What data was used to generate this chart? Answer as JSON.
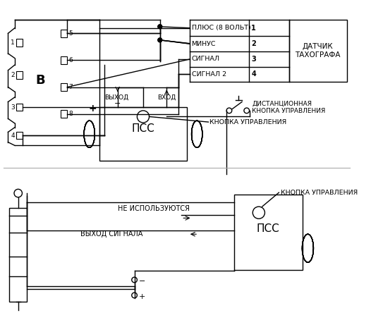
{
  "bg_color": "#ffffff",
  "fig_width": 5.26,
  "fig_height": 4.71,
  "dpi": 100,
  "labels": {
    "plus_8v": "ПЛЮС (8 ВОЛЬТ)",
    "minus": "МИНУС",
    "signal": "СИГНАЛ",
    "signal2": "СИГНАЛ 2",
    "sensor_box": "ДАТЧИК\nТАХОГРАФА",
    "vyhod": "ВЫХОД",
    "vhod": "ВХОД",
    "dist_btn": "ДИСТАНЦИОННАЯ\nКНОПКА УПРАВЛЕНИЯ",
    "knopka": "КНОПКА УПРАВЛЕНИЯ",
    "pss": "ПСС",
    "plus": "+",
    "minus_sign": "−",
    "b_label": "В",
    "ne_ispolz": "НЕ ИСПОЛЬЗУЮТСЯ",
    "vyhod_signala": "ВЫХОД СИГНАЛА",
    "knopka2": "КНОПКА УПРАВЛЕНИЯ",
    "pss2": "ПСС",
    "minus2": "−",
    "plus2": "+"
  }
}
